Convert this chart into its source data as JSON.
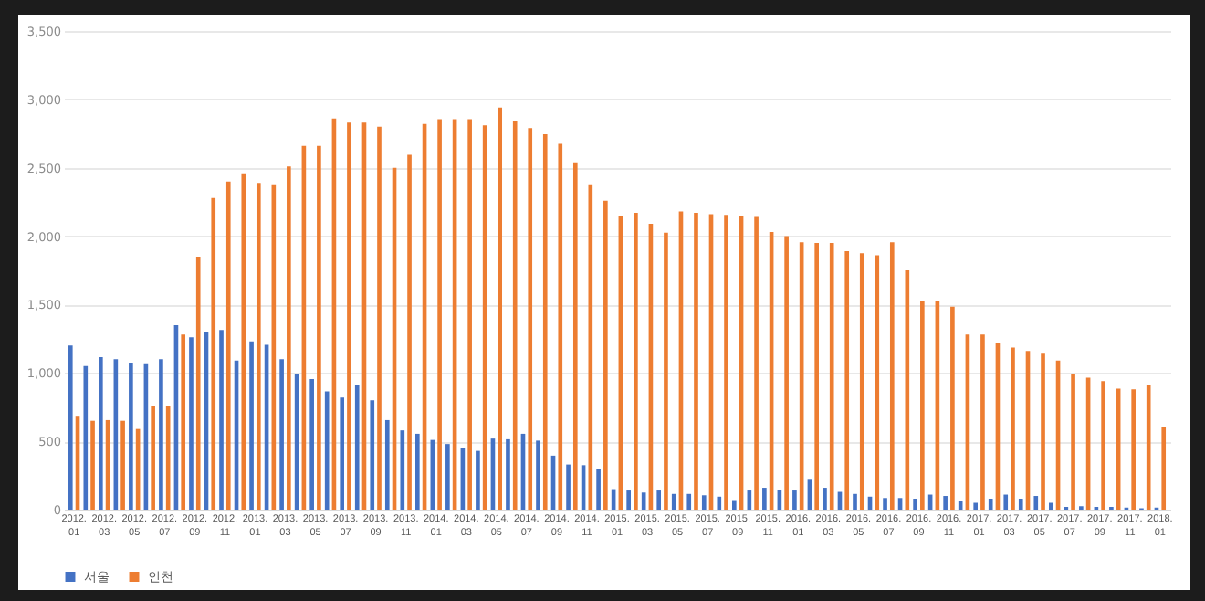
{
  "chart_data": {
    "type": "bar",
    "categories": [
      "2012. 01",
      null,
      "2012. 03",
      null,
      "2012. 05",
      null,
      "2012. 07",
      null,
      "2012. 09",
      null,
      "2012. 11",
      null,
      "2013. 01",
      null,
      "2013. 03",
      null,
      "2013. 05",
      null,
      "2013. 07",
      null,
      "2013. 09",
      null,
      "2013. 11",
      null,
      "2014. 01",
      null,
      "2014. 03",
      null,
      "2014. 05",
      null,
      "2014. 07",
      null,
      "2014. 09",
      null,
      "2014. 11",
      null,
      "2015. 01",
      null,
      "2015. 03",
      null,
      "2015. 05",
      null,
      "2015. 07",
      null,
      "2015. 09",
      null,
      "2015. 11",
      null,
      "2016. 01",
      null,
      "2016. 03",
      null,
      "2016. 05",
      null,
      "2016. 07",
      null,
      "2016. 09",
      null,
      "2016. 11",
      null,
      "2017. 01",
      null,
      "2017. 03",
      null,
      "2017. 05",
      null,
      "2017. 07",
      null,
      "2017. 09",
      null,
      "2017. 11",
      null,
      "2018. 01"
    ],
    "series": [
      {
        "name": "서울",
        "color": "#4472c4",
        "values": [
          1200,
          1050,
          1115,
          1100,
          1075,
          1070,
          1100,
          1350,
          1260,
          1295,
          1315,
          1090,
          1230,
          1205,
          1100,
          995,
          955,
          865,
          820,
          910,
          800,
          655,
          580,
          555,
          510,
          480,
          450,
          430,
          520,
          515,
          555,
          505,
          395,
          330,
          325,
          295,
          150,
          140,
          125,
          140,
          115,
          115,
          105,
          95,
          70,
          140,
          160,
          145,
          140,
          225,
          160,
          130,
          115,
          95,
          85,
          85,
          80,
          110,
          100,
          60,
          50,
          80,
          110,
          80,
          100,
          50,
          20,
          25,
          20,
          20,
          15,
          10,
          15
        ]
      },
      {
        "name": "인천",
        "color": "#ed7d31",
        "values": [
          680,
          650,
          655,
          650,
          590,
          755,
          755,
          1280,
          1850,
          2280,
          2400,
          2460,
          2390,
          2380,
          2510,
          2660,
          2660,
          2860,
          2830,
          2830,
          2800,
          2500,
          2595,
          2820,
          2855,
          2855,
          2855,
          2810,
          2940,
          2840,
          2790,
          2745,
          2675,
          2540,
          2380,
          2260,
          2150,
          2170,
          2090,
          2025,
          2180,
          2170,
          2160,
          2155,
          2150,
          2140,
          2030,
          2000,
          1955,
          1950,
          1950,
          1890,
          1875,
          1860,
          1955,
          1750,
          1525,
          1525,
          1485,
          1280,
          1280,
          1215,
          1185,
          1160,
          1140,
          1090,
          995,
          965,
          940,
          885,
          880,
          915,
          605
        ]
      }
    ],
    "ylim": [
      0,
      3500
    ],
    "yticks": [
      {
        "value": 0,
        "label": "0"
      },
      {
        "value": 500,
        "label": "500"
      },
      {
        "value": 1000,
        "label": "1,000"
      },
      {
        "value": 1500,
        "label": "1,500"
      },
      {
        "value": 2000,
        "label": "2,000"
      },
      {
        "value": 2500,
        "label": "2,500"
      },
      {
        "value": 3000,
        "label": "3,000"
      },
      {
        "value": 3500,
        "label": "3,500"
      }
    ],
    "grid": "y",
    "legend": "bottom"
  }
}
